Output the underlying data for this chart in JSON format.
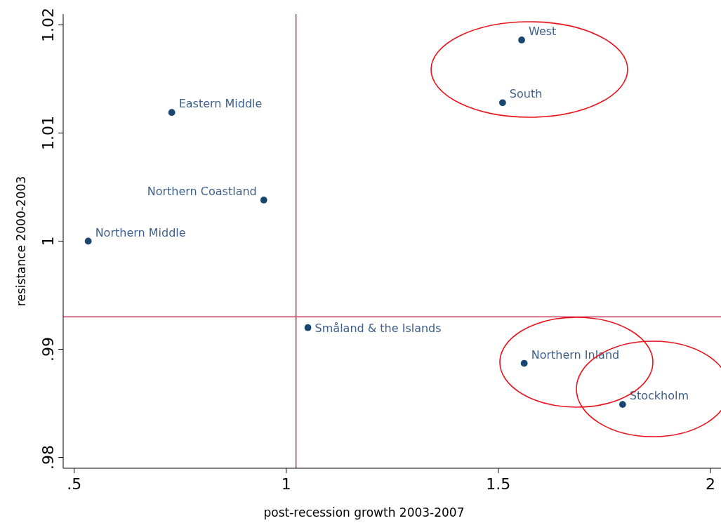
{
  "chart_data": {
    "type": "scatter",
    "xlabel": "post-recession growth 2003-2007",
    "ylabel": "resistance 2000-2003",
    "x": [
      1.555,
      1.51,
      0.73,
      0.947,
      0.533,
      1.051,
      1.561,
      1.793
    ],
    "series": [
      {
        "color": "#1a476f",
        "values": [
          1.0186,
          1.0128,
          1.0119,
          1.0038,
          1.0,
          0.992,
          0.9887,
          0.9849
        ]
      }
    ],
    "annotations": [
      {
        "text": "West",
        "x": 1.555,
        "y": 1.0186
      },
      {
        "text": "South",
        "x": 1.51,
        "y": 1.0128
      },
      {
        "text": "Eastern Middle",
        "x": 0.73,
        "y": 1.0119
      },
      {
        "text": "Northern Coastland",
        "x": 0.947,
        "y": 1.0038
      },
      {
        "text": "Northern Middle",
        "x": 0.533,
        "y": 1.0
      },
      {
        "text": "Småland & the Islands",
        "x": 1.051,
        "y": 0.992
      },
      {
        "text": "Northern Inland",
        "x": 1.561,
        "y": 0.9887
      },
      {
        "text": "Stockholm",
        "x": 1.793,
        "y": 0.9849
      }
    ],
    "xlim": [
      0.474,
      2.025
    ],
    "ylim": [
      0.979,
      1.021
    ],
    "xticks": [
      {
        "value": 0.5,
        "label": ".5"
      },
      1,
      1.5,
      2
    ],
    "yticks": [
      {
        "value": 0.98,
        "label": ".98"
      },
      {
        "value": 0.99,
        "label": ".99"
      },
      1,
      1.01,
      1.02
    ],
    "ref_lines": [
      {
        "axis": "x",
        "value": 1.023,
        "color": "#c10534"
      },
      {
        "axis": "y",
        "value": 0.993,
        "color": "#c10534"
      }
    ],
    "marker": "circle",
    "grid": false
  }
}
